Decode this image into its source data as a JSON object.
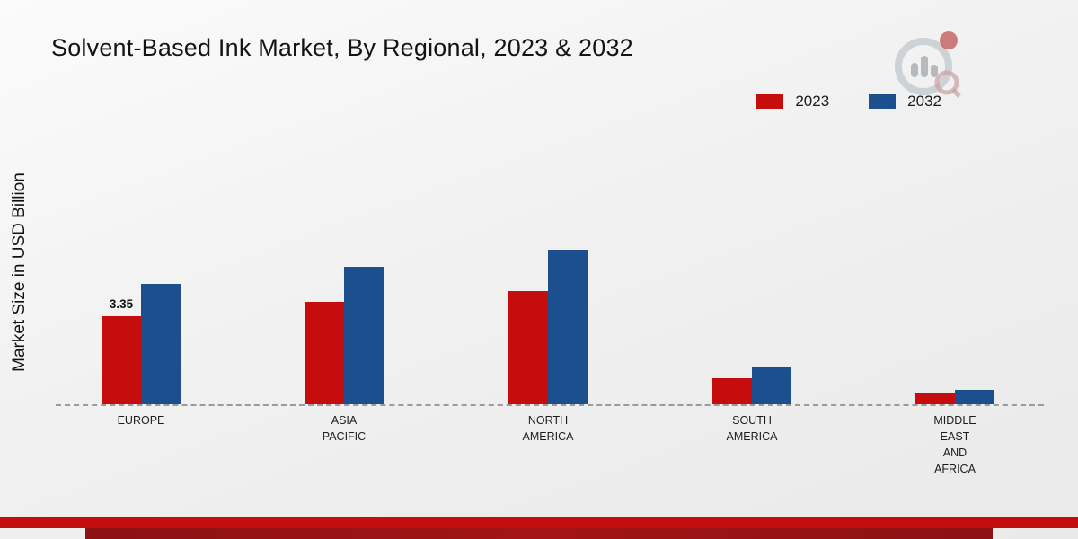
{
  "chart_data": {
    "type": "bar",
    "title": "Solvent-Based Ink Market, By Regional, 2023 & 2032",
    "ylabel": "Market Size in USD Billion",
    "xlabel": "",
    "units": "USD Billion",
    "categories": [
      "EUROPE",
      "ASIA\nPACIFIC",
      "NORTH\nAMERICA",
      "SOUTH\nAMERICA",
      "MIDDLE\nEAST\nAND\nAFRICA"
    ],
    "series": [
      {
        "name": "2023",
        "color": "#c50d0d",
        "values": [
          3.35,
          3.9,
          4.3,
          1.0,
          0.45
        ]
      },
      {
        "name": "2032",
        "color": "#1b4f8e",
        "values": [
          4.6,
          5.25,
          5.9,
          1.4,
          0.55
        ]
      }
    ],
    "bar_labels": [
      {
        "series_index": 0,
        "category_index": 0,
        "text": "3.35"
      }
    ],
    "ylim": [
      0,
      7
    ],
    "grid": false,
    "legend_position": "top-right",
    "baseline_style": "dashed"
  },
  "branding": {
    "logo_icon": "bar-chart-circle-logo",
    "footer_primary_color": "#c50d0d",
    "footer_secondary_color": "#8c1113"
  }
}
